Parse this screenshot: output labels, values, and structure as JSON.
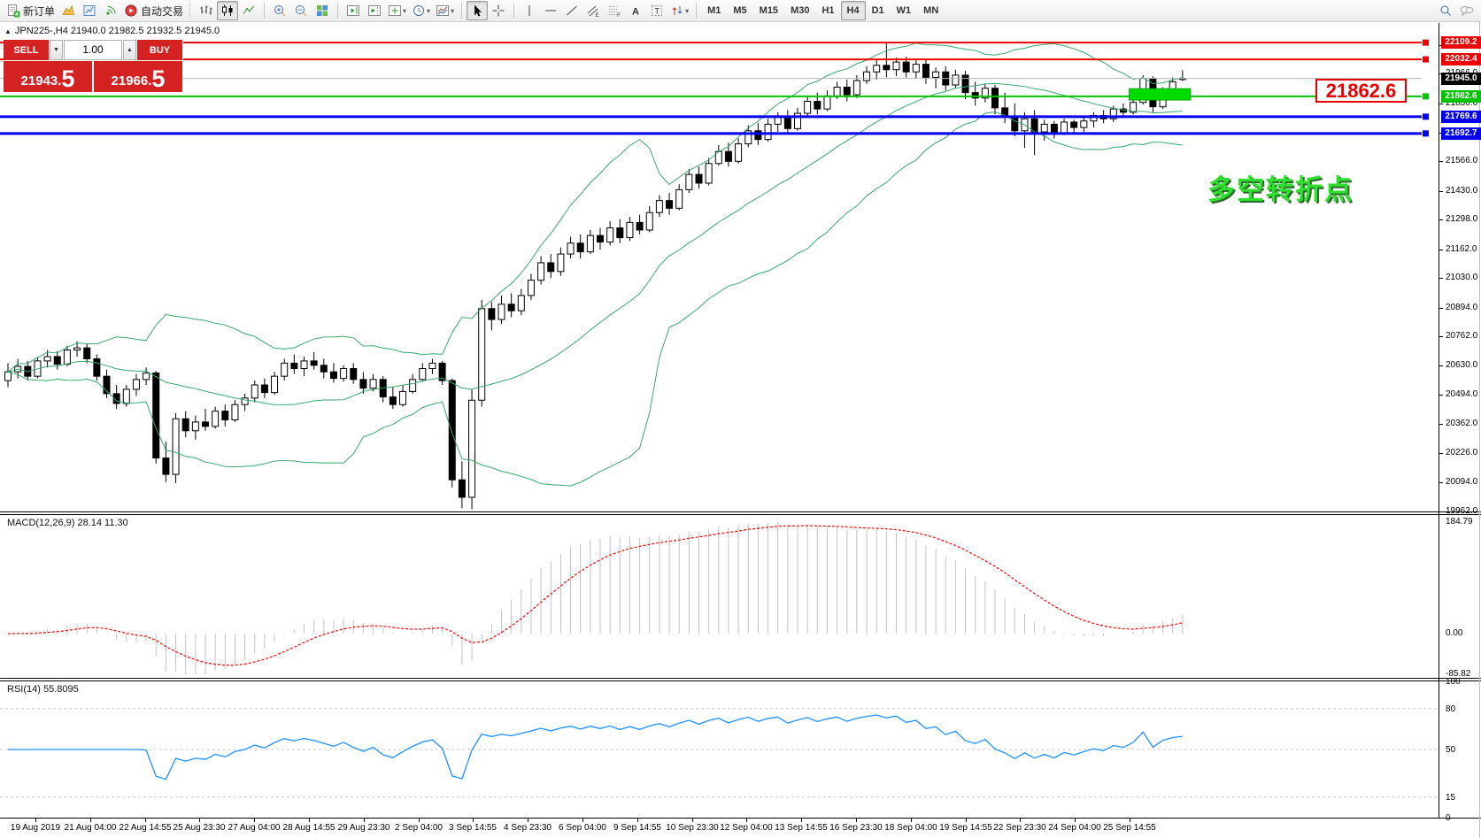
{
  "toolbar": {
    "new_order_label": "新订单",
    "auto_trading_label": "自动交易",
    "timeframes": [
      "M1",
      "M5",
      "M15",
      "M30",
      "H1",
      "H4",
      "D1",
      "W1",
      "MN"
    ],
    "active_timeframe": "H4"
  },
  "chart_header": {
    "collapse_glyph": "▲",
    "title": "JPN225-,H4  21940.0 21982.5 21932.5 21945.0"
  },
  "trade_panel": {
    "sell_label": "SELL",
    "buy_label": "BUY",
    "volume": "1.00",
    "spin_down": "▼",
    "spin_up": "▲",
    "sell_price": {
      "main": "21943",
      "point": ".",
      "big": "5"
    },
    "buy_price": {
      "main": "21966",
      "point": ".",
      "big": "5"
    }
  },
  "annotations": {
    "turning_point_text": "多空转折点",
    "price_callout": "21862.6"
  },
  "indicators": {
    "macd": {
      "label": "MACD(12,26,9) 28.14 11.30",
      "ticks": {
        "max": "184.79",
        "zero": "0.00",
        "min": "-85.82"
      }
    },
    "rsi": {
      "label": "RSI(14) 55.8095",
      "ticks": [
        "100",
        "80",
        "50",
        "15",
        "0"
      ],
      "tick_values": [
        100,
        80,
        50,
        15,
        0
      ],
      "levels": [
        80,
        50,
        15
      ]
    }
  },
  "price_axis": {
    "ticks": [
      "22098.0",
      "21966.0",
      "21830.0",
      "21698.0",
      "21566.0",
      "21430.0",
      "21298.0",
      "21162.0",
      "21030.0",
      "20894.0",
      "20762.0",
      "20630.0",
      "20494.0",
      "20362.0",
      "20226.0",
      "20094.0",
      "19962.0"
    ]
  },
  "chart_data": {
    "type": "candlestick",
    "symbol": "JPN225-",
    "timeframe": "H4",
    "title": "JPN225-,H4",
    "last_ohlc": {
      "open": 21940.0,
      "high": 21982.5,
      "low": 21932.5,
      "close": 21945.0
    },
    "ylim": [
      19960,
      22199
    ],
    "x_labels": [
      "19 Aug 2019",
      "21 Aug 04:00",
      "22 Aug 14:55",
      "25 Aug 23:30",
      "27 Aug 04:00",
      "28 Aug 14:55",
      "29 Aug 23:30",
      "2 Sep 04:00",
      "3 Sep 14:55",
      "4 Sep 23:30",
      "6 Sep 04:00",
      "9 Sep 14:55",
      "10 Sep 23:30",
      "12 Sep 04:00",
      "13 Sep 14:55",
      "16 Sep 23:30",
      "18 Sep 04:00",
      "19 Sep 14:55",
      "22 Sep 23:30",
      "24 Sep 04:00",
      "25 Sep 14:55"
    ],
    "hlines": [
      {
        "label": "22109.2",
        "price": 22109.2,
        "color": "#ee0000",
        "width": 2
      },
      {
        "label": "22032.4",
        "price": 22032.4,
        "color": "#ee0000",
        "width": 2
      },
      {
        "label": "21945.0",
        "price": 21945.0,
        "color": "#b4b4b4",
        "width": 1,
        "badge": "#000000",
        "square": false
      },
      {
        "label": "21862.6",
        "price": 21862.6,
        "color": "#00c400",
        "width": 2
      },
      {
        "label": "21769.6",
        "price": 21769.6,
        "color": "#0000ee",
        "width": 3
      },
      {
        "label": "21692.7",
        "price": 21692.7,
        "color": "#0000ee",
        "width": 3
      }
    ],
    "bollinger": {
      "period": 20,
      "deviation": 2,
      "color": "#3aa76d"
    },
    "macd": {
      "fast": 12,
      "slow": 26,
      "signal": 9,
      "main_value": 28.14,
      "signal_value": 11.3,
      "range": [
        -85.82,
        184.79
      ]
    },
    "rsi": {
      "period": 14,
      "value": 55.8095
    },
    "highlight_rect": {
      "price_top": 21898,
      "price_bottom": 21846,
      "candle_from": 113.6,
      "candle_to": 119.8,
      "color": "#00dc00"
    },
    "ohlc": [
      [
        20560,
        20640,
        20530,
        20600
      ],
      [
        20600,
        20660,
        20570,
        20625
      ],
      [
        20625,
        20650,
        20560,
        20580
      ],
      [
        20580,
        20665,
        20570,
        20650
      ],
      [
        20650,
        20700,
        20620,
        20670
      ],
      [
        20670,
        20695,
        20610,
        20635
      ],
      [
        20635,
        20720,
        20625,
        20700
      ],
      [
        20700,
        20740,
        20670,
        20710
      ],
      [
        20710,
        20730,
        20640,
        20660
      ],
      [
        20660,
        20680,
        20560,
        20580
      ],
      [
        20580,
        20610,
        20480,
        20500
      ],
      [
        20500,
        20540,
        20430,
        20455
      ],
      [
        20455,
        20540,
        20440,
        20520
      ],
      [
        20520,
        20590,
        20490,
        20565
      ],
      [
        20565,
        20620,
        20540,
        20595
      ],
      [
        20595,
        20605,
        20180,
        20205
      ],
      [
        20205,
        20280,
        20095,
        20130
      ],
      [
        20130,
        20410,
        20090,
        20385
      ],
      [
        20385,
        20420,
        20300,
        20330
      ],
      [
        20330,
        20400,
        20290,
        20370
      ],
      [
        20370,
        20430,
        20330,
        20350
      ],
      [
        20350,
        20440,
        20340,
        20420
      ],
      [
        20420,
        20450,
        20350,
        20380
      ],
      [
        20380,
        20470,
        20370,
        20450
      ],
      [
        20450,
        20500,
        20420,
        20480
      ],
      [
        20480,
        20560,
        20460,
        20540
      ],
      [
        20540,
        20570,
        20480,
        20505
      ],
      [
        20505,
        20600,
        20495,
        20580
      ],
      [
        20580,
        20660,
        20560,
        20640
      ],
      [
        20640,
        20680,
        20590,
        20615
      ],
      [
        20615,
        20670,
        20580,
        20650
      ],
      [
        20650,
        20690,
        20610,
        20630
      ],
      [
        20630,
        20660,
        20570,
        20600
      ],
      [
        20600,
        20640,
        20550,
        20570
      ],
      [
        20570,
        20630,
        20555,
        20615
      ],
      [
        20615,
        20640,
        20545,
        20565
      ],
      [
        20565,
        20600,
        20500,
        20525
      ],
      [
        20525,
        20590,
        20510,
        20565
      ],
      [
        20565,
        20580,
        20460,
        20485
      ],
      [
        20485,
        20530,
        20430,
        20450
      ],
      [
        20450,
        20540,
        20440,
        20510
      ],
      [
        20510,
        20590,
        20500,
        20565
      ],
      [
        20565,
        20640,
        20555,
        20615
      ],
      [
        20615,
        20660,
        20590,
        20640
      ],
      [
        20640,
        20650,
        20540,
        20560
      ],
      [
        20560,
        20570,
        20070,
        20105
      ],
      [
        20105,
        20190,
        19975,
        20025
      ],
      [
        20025,
        20520,
        19970,
        20470
      ],
      [
        20470,
        20930,
        20440,
        20890
      ],
      [
        20890,
        20920,
        20790,
        20840
      ],
      [
        20840,
        20950,
        20820,
        20910
      ],
      [
        20910,
        20960,
        20850,
        20880
      ],
      [
        20880,
        20980,
        20860,
        20950
      ],
      [
        20950,
        21050,
        20930,
        21020
      ],
      [
        21020,
        21130,
        21000,
        21100
      ],
      [
        21100,
        21140,
        21030,
        21060
      ],
      [
        21060,
        21170,
        21040,
        21140
      ],
      [
        21140,
        21220,
        21120,
        21190
      ],
      [
        21190,
        21230,
        21120,
        21150
      ],
      [
        21150,
        21250,
        21140,
        21225
      ],
      [
        21225,
        21260,
        21160,
        21195
      ],
      [
        21195,
        21290,
        21180,
        21260
      ],
      [
        21260,
        21300,
        21190,
        21215
      ],
      [
        21215,
        21310,
        21200,
        21285
      ],
      [
        21285,
        21320,
        21230,
        21250
      ],
      [
        21250,
        21360,
        21240,
        21330
      ],
      [
        21330,
        21410,
        21310,
        21385
      ],
      [
        21385,
        21420,
        21320,
        21350
      ],
      [
        21350,
        21460,
        21340,
        21435
      ],
      [
        21435,
        21530,
        21420,
        21505
      ],
      [
        21505,
        21540,
        21440,
        21465
      ],
      [
        21465,
        21580,
        21455,
        21555
      ],
      [
        21555,
        21640,
        21545,
        21610
      ],
      [
        21610,
        21650,
        21540,
        21565
      ],
      [
        21565,
        21670,
        21555,
        21645
      ],
      [
        21645,
        21730,
        21630,
        21705
      ],
      [
        21705,
        21740,
        21640,
        21665
      ],
      [
        21665,
        21760,
        21655,
        21735
      ],
      [
        21735,
        21790,
        21700,
        21770
      ],
      [
        21770,
        21800,
        21690,
        21715
      ],
      [
        21715,
        21810,
        21705,
        21785
      ],
      [
        21785,
        21860,
        21770,
        21840
      ],
      [
        21840,
        21880,
        21780,
        21805
      ],
      [
        21805,
        21890,
        21795,
        21865
      ],
      [
        21865,
        21930,
        21850,
        21905
      ],
      [
        21905,
        21940,
        21840,
        21870
      ],
      [
        21870,
        21960,
        21855,
        21935
      ],
      [
        21935,
        22000,
        21920,
        21975
      ],
      [
        21975,
        22030,
        21940,
        22005
      ],
      [
        22005,
        22110,
        21950,
        21985
      ],
      [
        21985,
        22040,
        21955,
        22020
      ],
      [
        22020,
        22045,
        21950,
        21975
      ],
      [
        21975,
        22035,
        21945,
        22010
      ],
      [
        22010,
        22030,
        21920,
        21950
      ],
      [
        21950,
        21995,
        21900,
        21975
      ],
      [
        21975,
        22000,
        21890,
        21915
      ],
      [
        21915,
        21985,
        21900,
        21960
      ],
      [
        21960,
        21980,
        21850,
        21880
      ],
      [
        21880,
        21930,
        21820,
        21855
      ],
      [
        21855,
        21920,
        21835,
        21900
      ],
      [
        21900,
        21915,
        21780,
        21810
      ],
      [
        21810,
        21880,
        21740,
        21770
      ],
      [
        21770,
        21830,
        21680,
        21705
      ],
      [
        21705,
        21790,
        21626,
        21760
      ],
      [
        21760,
        21800,
        21594,
        21700
      ],
      [
        21700,
        21755,
        21660,
        21735
      ],
      [
        21735,
        21750,
        21670,
        21695
      ],
      [
        21695,
        21760,
        21685,
        21745
      ],
      [
        21745,
        21755,
        21695,
        21720
      ],
      [
        21720,
        21770,
        21700,
        21750
      ],
      [
        21750,
        21790,
        21720,
        21775
      ],
      [
        21775,
        21800,
        21740,
        21760
      ],
      [
        21760,
        21820,
        21745,
        21805
      ],
      [
        21805,
        21830,
        21770,
        21790
      ],
      [
        21790,
        21850,
        21780,
        21835
      ],
      [
        21835,
        21960,
        21825,
        21945
      ],
      [
        21945,
        21955,
        21790,
        21815
      ],
      [
        21815,
        21905,
        21805,
        21895
      ],
      [
        21895,
        21950,
        21880,
        21930
      ],
      [
        21940,
        21982.5,
        21932.5,
        21945
      ]
    ]
  }
}
